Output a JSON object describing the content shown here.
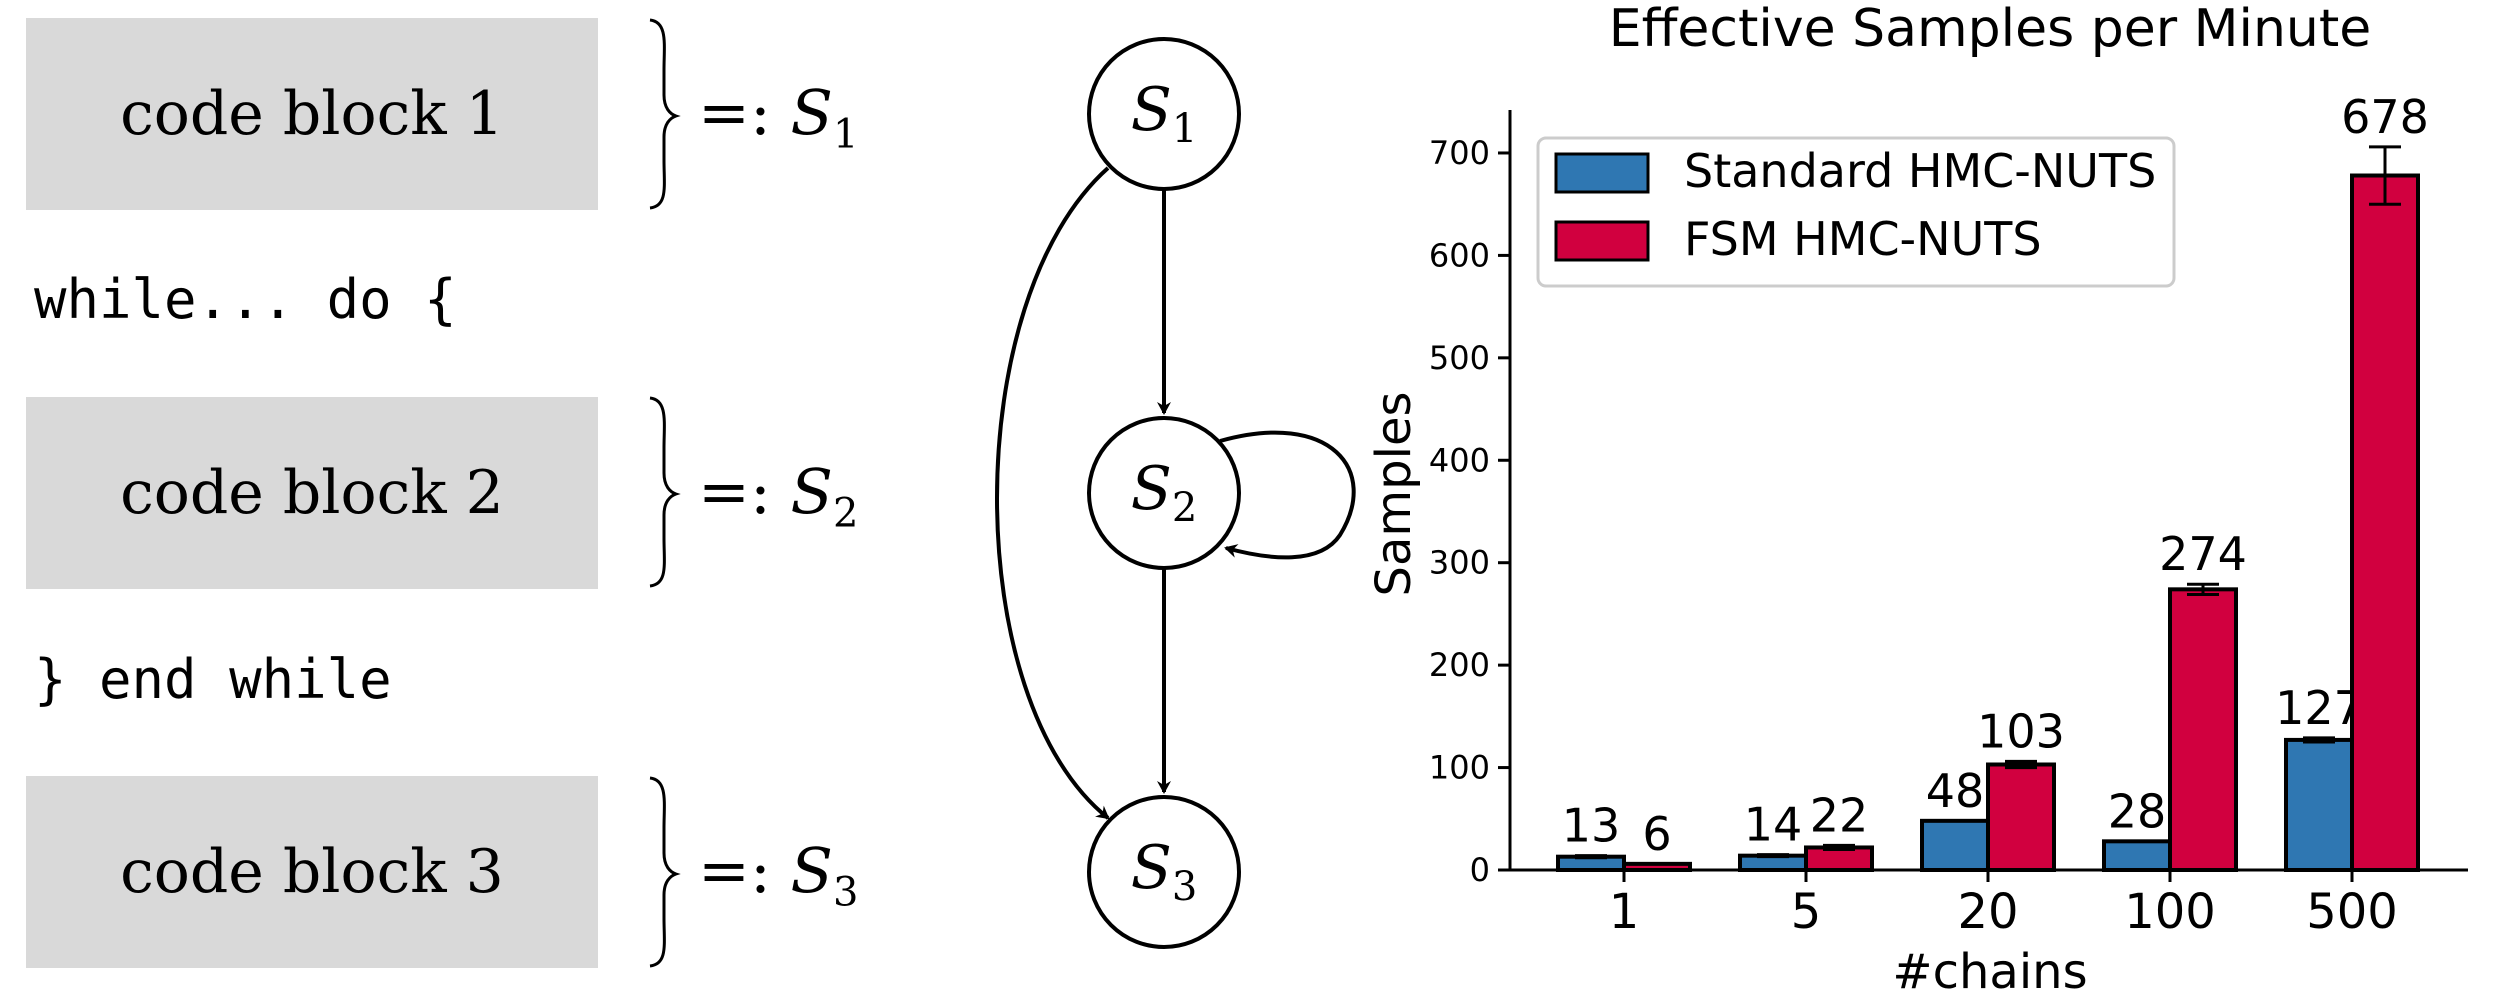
{
  "code": {
    "blocks": [
      {
        "label": "code block 1",
        "symbol": "S",
        "sub": "1"
      },
      {
        "label": "code block 2",
        "symbol": "S",
        "sub": "2"
      },
      {
        "label": "code block 3",
        "symbol": "S",
        "sub": "3"
      }
    ],
    "defines": "=: ",
    "while_line": "while... do {",
    "end_line": "} end while"
  },
  "graph": {
    "nodes": [
      {
        "symbol": "S",
        "sub": "1"
      },
      {
        "symbol": "S",
        "sub": "2"
      },
      {
        "symbol": "S",
        "sub": "3"
      }
    ]
  },
  "chart_data": {
    "type": "bar",
    "title": "Effective Samples per Minute",
    "xlabel": "#chains",
    "ylabel": "Samples",
    "categories": [
      "1",
      "5",
      "20",
      "100",
      "500"
    ],
    "ylim": [
      0,
      740
    ],
    "yticks": [
      0,
      100,
      200,
      300,
      400,
      500,
      600,
      700
    ],
    "legend_position": "top-left",
    "series": [
      {
        "name": "Standard HMC-NUTS",
        "color": "#2f77b2",
        "values": [
          13,
          14,
          48,
          28,
          127
        ],
        "labels": [
          "13",
          "14",
          "48",
          "28",
          "127"
        ],
        "errors": [
          1,
          1,
          0,
          0,
          2
        ]
      },
      {
        "name": "FSM HMC-NUTS",
        "color": "#d1003f",
        "values": [
          6,
          22,
          103,
          274,
          678
        ],
        "labels": [
          "6",
          "22",
          "103",
          "274",
          "678"
        ],
        "errors": [
          0,
          2,
          3,
          5,
          28
        ]
      }
    ]
  }
}
